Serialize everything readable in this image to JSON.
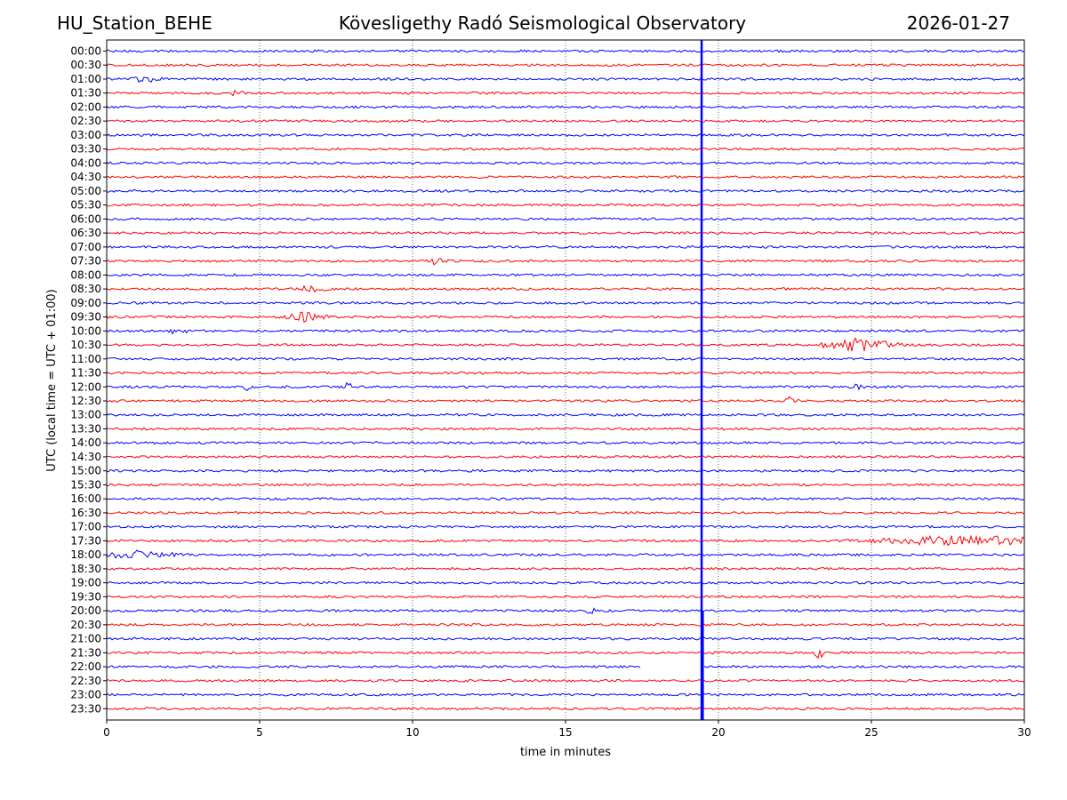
{
  "header": {
    "station": "HU_Station_BEHE",
    "title": "Kövesligethy Radó Seismological Observatory",
    "date": "2026-01-27"
  },
  "chart_data": {
    "type": "line",
    "title": "Kövesligethy Radó Seismological Observatory",
    "xlabel": "time in minutes",
    "ylabel": "UTC (local time = UTC + 01:00)",
    "xlim": [
      0,
      30
    ],
    "x_ticks": [
      0,
      5,
      10,
      15,
      20,
      25,
      30
    ],
    "grid_x": true,
    "series_colors": [
      "#0000ff",
      "#ff0000"
    ],
    "row_labels": [
      "00:00",
      "00:30",
      "01:00",
      "01:30",
      "02:00",
      "02:30",
      "03:00",
      "03:30",
      "04:00",
      "04:30",
      "05:00",
      "05:30",
      "06:00",
      "06:30",
      "07:00",
      "07:30",
      "08:00",
      "08:30",
      "09:00",
      "09:30",
      "10:00",
      "10:30",
      "11:00",
      "11:30",
      "12:00",
      "12:30",
      "13:00",
      "13:30",
      "14:00",
      "14:30",
      "15:00",
      "15:30",
      "16:00",
      "16:30",
      "17:00",
      "17:30",
      "18:00",
      "18:30",
      "19:00",
      "19:30",
      "20:00",
      "20:30",
      "21:00",
      "21:30",
      "22:00",
      "22:30",
      "23:00",
      "23:30"
    ],
    "vertical_event_minute": 19.45,
    "events": [
      {
        "row": 2,
        "minute": 1.2,
        "width": 0.8,
        "amp": 3
      },
      {
        "row": 3,
        "minute": 4.2,
        "width": 0.3,
        "amp": 3
      },
      {
        "row": 15,
        "minute": 10.8,
        "width": 0.4,
        "amp": 4
      },
      {
        "row": 17,
        "minute": 6.7,
        "width": 0.6,
        "amp": 4
      },
      {
        "row": 19,
        "minute": 6.5,
        "width": 0.9,
        "amp": 5
      },
      {
        "row": 20,
        "minute": 2.3,
        "width": 0.5,
        "amp": 3
      },
      {
        "row": 21,
        "minute": 24.6,
        "width": 1.6,
        "amp": 7
      },
      {
        "row": 24,
        "minute": 4.6,
        "width": 0.2,
        "amp": 5
      },
      {
        "row": 24,
        "minute": 7.9,
        "width": 0.2,
        "amp": 5
      },
      {
        "row": 24,
        "minute": 24.5,
        "width": 0.3,
        "amp": 4
      },
      {
        "row": 25,
        "minute": 22.4,
        "width": 0.3,
        "amp": 5
      },
      {
        "row": 35,
        "minute": 28.0,
        "width": 4.2,
        "amp": 6
      },
      {
        "row": 36,
        "minute": 0.9,
        "width": 1.8,
        "amp": 4
      },
      {
        "row": 40,
        "minute": 15.8,
        "width": 0.3,
        "amp": 3
      },
      {
        "row": 43,
        "minute": 23.3,
        "width": 0.2,
        "amp": 6
      }
    ],
    "gaps": [
      {
        "row": 44,
        "from_minute": 17.5,
        "to_minute": 19.5
      }
    ]
  }
}
